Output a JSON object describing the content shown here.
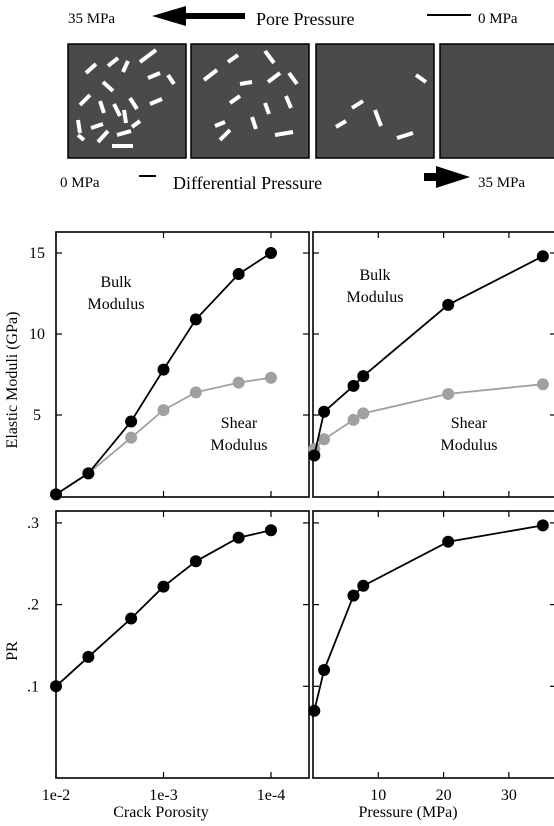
{
  "schematic": {
    "pore_pressure": {
      "label": "Pore Pressure",
      "left": "35 MPa",
      "right": "0 MPa"
    },
    "differential_pressure": {
      "label": "Differential Pressure",
      "left": "0 MPa",
      "right": "35 MPa"
    },
    "box_crack_counts": [
      14,
      8,
      4,
      0
    ],
    "box_color": "#4a4a4a",
    "crack_color": "#ffffff"
  },
  "chart_data": [
    {
      "type": "line",
      "panel": "top-left",
      "x_scale": "log",
      "xlim": [
        0.01,
        0.0001
      ],
      "ylim": [
        0,
        16
      ],
      "yticks": [
        "5",
        "10",
        "15"
      ],
      "ylabel": "Elastic Moduli (GPa)",
      "series": [
        {
          "name": "Bulk Modulus",
          "color": "#000000",
          "x": [
            0.01,
            0.005,
            0.002,
            0.001,
            0.0005,
            0.0002,
            0.0001
          ],
          "y": [
            0.1,
            1.4,
            4.6,
            7.8,
            10.9,
            13.7,
            15.0
          ]
        },
        {
          "name": "Shear Modulus",
          "color": "#a0a0a0",
          "x": [
            0.01,
            0.005,
            0.002,
            0.001,
            0.0005,
            0.0002,
            0.0001
          ],
          "y": [
            0.1,
            1.4,
            3.6,
            5.3,
            6.4,
            7.0,
            7.3
          ]
        }
      ],
      "labels": [
        [
          "Bulk",
          "Modulus"
        ],
        [
          "Shear",
          "Modulus"
        ]
      ]
    },
    {
      "type": "line",
      "panel": "top-right",
      "xlim": [
        0,
        35
      ],
      "ylim": [
        0,
        16
      ],
      "series": [
        {
          "name": "Bulk Modulus",
          "color": "#000000",
          "x": [
            0.2,
            1.7,
            6.2,
            7.7,
            20.7,
            35.2
          ],
          "y": [
            2.5,
            5.2,
            6.8,
            7.4,
            11.8,
            14.8
          ]
        },
        {
          "name": "Shear Modulus",
          "color": "#a0a0a0",
          "x": [
            0.2,
            1.7,
            6.2,
            7.7,
            20.7,
            35.2
          ],
          "y": [
            2.9,
            3.5,
            4.7,
            5.1,
            6.3,
            6.9
          ]
        }
      ],
      "labels": [
        [
          "Bulk",
          "Modulus"
        ],
        [
          "Shear",
          "Modulus"
        ]
      ]
    },
    {
      "type": "line",
      "panel": "bottom-left",
      "x_scale": "log",
      "xlim": [
        0.01,
        0.0001
      ],
      "xticks": [
        "1e-2",
        "1e-3",
        "1e-4"
      ],
      "xlabel": "Crack Porosity",
      "ylim": [
        0.0,
        0.31
      ],
      "yticks": [
        ".1",
        ".2",
        ".3"
      ],
      "ylabel": "PR",
      "series": [
        {
          "color": "#000000",
          "x": [
            0.01,
            0.005,
            0.002,
            0.001,
            0.0005,
            0.0002,
            0.0001
          ],
          "y": [
            0.1,
            0.136,
            0.183,
            0.222,
            0.253,
            0.282,
            0.291
          ]
        }
      ]
    },
    {
      "type": "line",
      "panel": "bottom-right",
      "xlim": [
        0,
        35
      ],
      "xticks": [
        "10",
        "20",
        "30"
      ],
      "xlabel": "Pressure (MPa)",
      "ylim": [
        0.0,
        0.31
      ],
      "series": [
        {
          "color": "#000000",
          "x": [
            0.2,
            1.7,
            6.2,
            7.7,
            20.7,
            35.2
          ],
          "y": [
            0.07,
            0.12,
            0.211,
            0.223,
            0.277,
            0.297
          ]
        }
      ]
    }
  ]
}
